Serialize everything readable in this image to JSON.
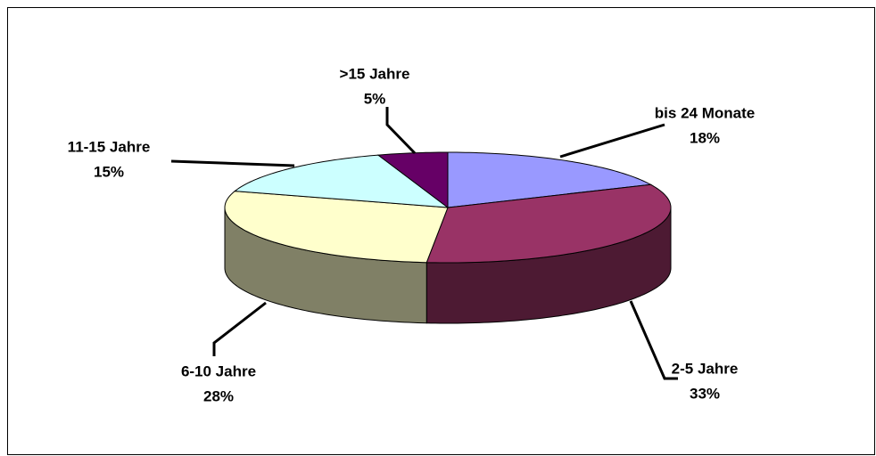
{
  "chart_data": {
    "type": "pie",
    "categories": [
      "bis 24 Monate",
      "2-5 Jahre",
      "6-10 Jahre",
      "11-15 Jahre",
      ">15 Jahre"
    ],
    "values": [
      18,
      33,
      28,
      15,
      5
    ],
    "value_labels": [
      "18%",
      "33%",
      "28%",
      "15%",
      "5%"
    ],
    "colors": [
      "#9999ff",
      "#993366",
      "#ffffcc",
      "#ccffff",
      "#660066"
    ]
  }
}
